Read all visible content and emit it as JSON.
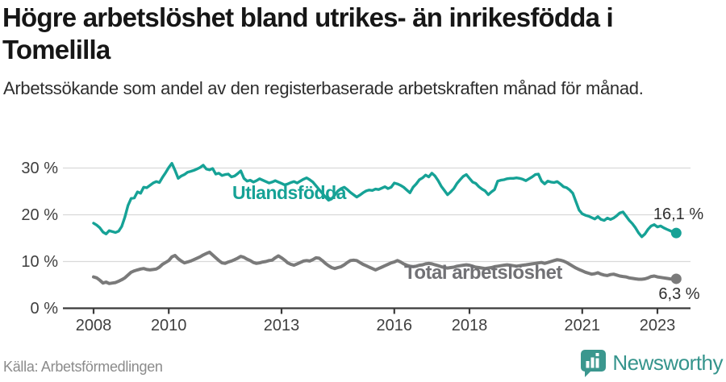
{
  "title": "Högre arbetslöshet bland utrikes- än inrikesfödda i Tomelilla",
  "subtitle": "Arbetssökande som andel av den registerbaserade arbetskraften månad för månad.",
  "footer": {
    "source": "Källa: Arbetsförmedlingen",
    "brand": "Newsworthy",
    "brand_icon": "newsworthy-bar-chart-bubble-icon"
  },
  "colors": {
    "teal_line": "#16a296",
    "gray_line": "#7a7a7a",
    "gray_label": "#717175",
    "grid": "#d9d9d9",
    "axis": "#3a3a3a",
    "tick_text": "#3f3f3f",
    "value_label_text": "#2f2f2f",
    "brand_teal": "#3b978e"
  },
  "chart_data": {
    "type": "line",
    "title": "Högre arbetslöshet bland utrikes- än inrikesfödda i Tomelilla",
    "subtitle": "Arbetssökande som andel av den registerbaserade arbetskraften månad för månad.",
    "x_start_year": 2008,
    "x_step_months": 1,
    "x_tick_years": [
      2008,
      2010,
      2013,
      2016,
      2018,
      2021,
      2023
    ],
    "y_tick_values": [
      0,
      10,
      20,
      30
    ],
    "y_tick_labels": [
      "0 %",
      "10 %",
      "20 %",
      "30 %"
    ],
    "ylim": [
      0,
      33
    ],
    "grid": true,
    "legend_position": "inline-labels",
    "series": [
      {
        "name": "Utlandsfödda",
        "color": "#16a296",
        "end_label": "16,1 %",
        "end_value": 16.1,
        "values": [
          18.2,
          17.8,
          17.2,
          16.3,
          15.9,
          16.6,
          16.4,
          16.2,
          16.5,
          17.5,
          19.5,
          22.0,
          23.5,
          23.6,
          24.9,
          24.6,
          25.9,
          25.8,
          26.3,
          26.8,
          27.1,
          26.9,
          28.0,
          29.0,
          30.1,
          31.0,
          29.5,
          27.8,
          28.3,
          28.6,
          29.1,
          29.3,
          29.5,
          29.8,
          30.1,
          30.6,
          29.8,
          29.6,
          29.9,
          28.7,
          28.9,
          28.4,
          28.6,
          28.7,
          28.1,
          28.3,
          28.8,
          29.4,
          27.8,
          27.2,
          27.4,
          27.0,
          27.3,
          27.7,
          27.4,
          27.1,
          26.8,
          27.0,
          27.3,
          27.0,
          26.7,
          26.4,
          26.6,
          26.9,
          27.1,
          26.8,
          27.2,
          27.6,
          27.9,
          27.5,
          27.0,
          26.2,
          25.4,
          24.6,
          23.8,
          23.1,
          23.4,
          24.2,
          25.1,
          25.6,
          25.9,
          25.4,
          24.8,
          24.3,
          23.8,
          24.2,
          24.7,
          25.1,
          25.3,
          25.2,
          25.5,
          25.4,
          25.7,
          26.0,
          25.6,
          25.9,
          26.8,
          26.6,
          26.3,
          25.9,
          25.3,
          24.7,
          25.9,
          26.6,
          27.5,
          27.9,
          28.5,
          28.1,
          28.9,
          28.3,
          27.3,
          26.1,
          25.2,
          24.3,
          24.9,
          25.6,
          26.7,
          27.5,
          28.2,
          28.6,
          27.8,
          27.0,
          26.7,
          26.0,
          25.5,
          25.1,
          24.3,
          24.9,
          25.4,
          27.2,
          27.4,
          27.5,
          27.7,
          27.8,
          27.8,
          27.9,
          27.8,
          27.6,
          27.3,
          27.7,
          28.1,
          28.6,
          28.7,
          27.2,
          26.6,
          27.2,
          27.0,
          26.9,
          27.1,
          26.6,
          26.0,
          25.8,
          25.3,
          24.6,
          22.8,
          21.0,
          20.2,
          19.9,
          19.7,
          19.4,
          19.1,
          19.6,
          19.0,
          18.8,
          19.3,
          19.0,
          19.3,
          19.8,
          20.4,
          20.6,
          19.7,
          18.8,
          18.1,
          17.2,
          16.1,
          15.3,
          15.9,
          16.9,
          17.6,
          17.9,
          17.4,
          17.6,
          17.2,
          16.9,
          16.6,
          16.3,
          16.1
        ]
      },
      {
        "name": "Total arbetslöshet",
        "color": "#7a7a7a",
        "end_label": "6,3 %",
        "end_value": 6.3,
        "values": [
          6.7,
          6.5,
          6.0,
          5.4,
          5.6,
          5.3,
          5.4,
          5.5,
          5.8,
          6.1,
          6.5,
          7.1,
          7.7,
          8.0,
          8.2,
          8.4,
          8.5,
          8.3,
          8.2,
          8.3,
          8.4,
          8.8,
          9.4,
          9.8,
          10.2,
          11.0,
          11.3,
          10.6,
          10.1,
          9.7,
          9.9,
          10.1,
          10.4,
          10.7,
          11.0,
          11.4,
          11.7,
          12.0,
          11.4,
          10.8,
          10.2,
          9.7,
          9.6,
          9.9,
          10.1,
          10.4,
          10.7,
          11.1,
          10.9,
          10.5,
          10.2,
          9.8,
          9.6,
          9.7,
          9.9,
          10.0,
          10.2,
          10.3,
          10.8,
          11.2,
          10.8,
          10.3,
          9.7,
          9.4,
          9.2,
          9.5,
          9.8,
          10.1,
          10.2,
          10.1,
          10.4,
          10.8,
          10.7,
          10.2,
          9.6,
          9.1,
          8.7,
          8.5,
          8.7,
          8.9,
          9.3,
          9.8,
          10.2,
          10.3,
          10.2,
          9.8,
          9.4,
          9.1,
          8.8,
          8.5,
          8.2,
          8.5,
          8.8,
          9.1,
          9.4,
          9.7,
          9.9,
          10.2,
          9.9,
          9.5,
          9.2,
          9.0,
          8.9,
          9.0,
          9.2,
          9.3,
          9.5,
          9.6,
          9.5,
          9.3,
          9.1,
          8.9,
          8.7,
          8.6,
          8.7,
          8.8,
          9.0,
          9.1,
          9.2,
          9.3,
          9.2,
          9.0,
          8.8,
          8.7,
          8.6,
          8.5,
          8.6,
          8.7,
          8.9,
          9.0,
          9.1,
          9.2,
          9.3,
          9.2,
          9.1,
          9.0,
          9.1,
          9.2,
          9.3,
          9.4,
          9.5,
          9.6,
          9.7,
          9.8,
          9.6,
          9.8,
          10.0,
          10.2,
          10.4,
          10.3,
          10.1,
          9.8,
          9.4,
          9.0,
          8.6,
          8.3,
          8.0,
          7.7,
          7.5,
          7.3,
          7.4,
          7.6,
          7.3,
          7.1,
          7.0,
          7.2,
          7.3,
          7.1,
          6.9,
          6.8,
          6.7,
          6.5,
          6.4,
          6.3,
          6.2,
          6.2,
          6.3,
          6.5,
          6.8,
          6.9,
          6.7,
          6.6,
          6.5,
          6.4,
          6.3,
          6.2,
          6.3
        ]
      }
    ]
  }
}
